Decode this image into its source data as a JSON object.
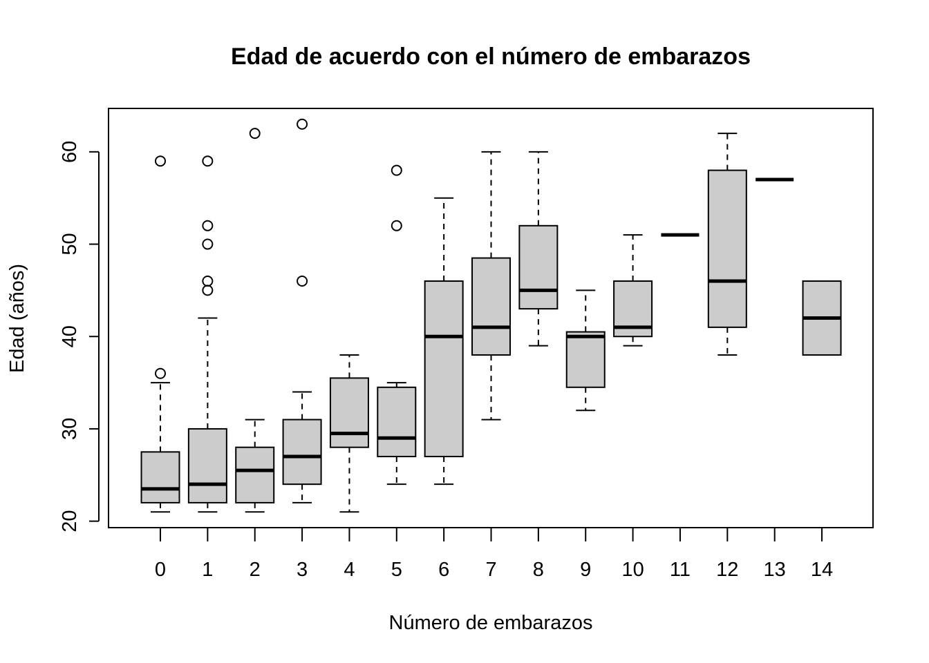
{
  "chart_data": {
    "type": "boxplot",
    "title": "Edad de acuerdo con el número de embarazos",
    "xlabel": "Número de embarazos",
    "ylabel": "Edad (años)",
    "ylim": [
      19.3,
      64.7
    ],
    "y_ticks": [
      "20",
      "30",
      "40",
      "50",
      "60"
    ],
    "grid": false,
    "legend": "none",
    "colors": {
      "box_fill": "#cccccc",
      "stroke": "#000000",
      "background": "#ffffff"
    },
    "categories": [
      "0",
      "1",
      "2",
      "3",
      "4",
      "5",
      "6",
      "7",
      "8",
      "9",
      "10",
      "11",
      "12",
      "13",
      "14"
    ],
    "boxes": [
      {
        "group": "0",
        "whisker_low": 21,
        "q1": 22,
        "median": 23.5,
        "q3": 27.5,
        "whisker_high": 35,
        "outliers": [
          36,
          59
        ]
      },
      {
        "group": "1",
        "whisker_low": 21,
        "q1": 22,
        "median": 24,
        "q3": 30,
        "whisker_high": 42,
        "outliers": [
          45,
          46,
          50,
          52,
          59
        ]
      },
      {
        "group": "2",
        "whisker_low": 21,
        "q1": 22,
        "median": 25.5,
        "q3": 28,
        "whisker_high": 31,
        "outliers": [
          62
        ]
      },
      {
        "group": "3",
        "whisker_low": 22,
        "q1": 24,
        "median": 27,
        "q3": 31,
        "whisker_high": 34,
        "outliers": [
          46,
          63
        ]
      },
      {
        "group": "4",
        "whisker_low": 21,
        "q1": 28,
        "median": 29.5,
        "q3": 35.5,
        "whisker_high": 38,
        "outliers": []
      },
      {
        "group": "5",
        "whisker_low": 24,
        "q1": 27,
        "median": 29,
        "q3": 34.5,
        "whisker_high": 35,
        "outliers": [
          52,
          58
        ]
      },
      {
        "group": "6",
        "whisker_low": 24,
        "q1": 27,
        "median": 40,
        "q3": 46,
        "whisker_high": 55,
        "outliers": []
      },
      {
        "group": "7",
        "whisker_low": 31,
        "q1": 38,
        "median": 41,
        "q3": 48.5,
        "whisker_high": 60,
        "outliers": []
      },
      {
        "group": "8",
        "whisker_low": 39,
        "q1": 43,
        "median": 45,
        "q3": 52,
        "whisker_high": 60,
        "outliers": []
      },
      {
        "group": "9",
        "whisker_low": 32,
        "q1": 34.5,
        "median": 40,
        "q3": 40.5,
        "whisker_high": 45,
        "outliers": []
      },
      {
        "group": "10",
        "whisker_low": 39,
        "q1": 40,
        "median": 41,
        "q3": 46,
        "whisker_high": 51,
        "outliers": []
      },
      {
        "group": "11",
        "whisker_low": 51,
        "q1": 51,
        "median": 51,
        "q3": 51,
        "whisker_high": 51,
        "outliers": []
      },
      {
        "group": "12",
        "whisker_low": 38,
        "q1": 41,
        "median": 46,
        "q3": 58,
        "whisker_high": 62,
        "outliers": []
      },
      {
        "group": "13",
        "whisker_low": 57,
        "q1": 57,
        "median": 57,
        "q3": 57,
        "whisker_high": 57,
        "outliers": []
      },
      {
        "group": "14",
        "whisker_low": 38,
        "q1": 38,
        "median": 42,
        "q3": 46,
        "whisker_high": 46,
        "outliers": []
      }
    ]
  }
}
